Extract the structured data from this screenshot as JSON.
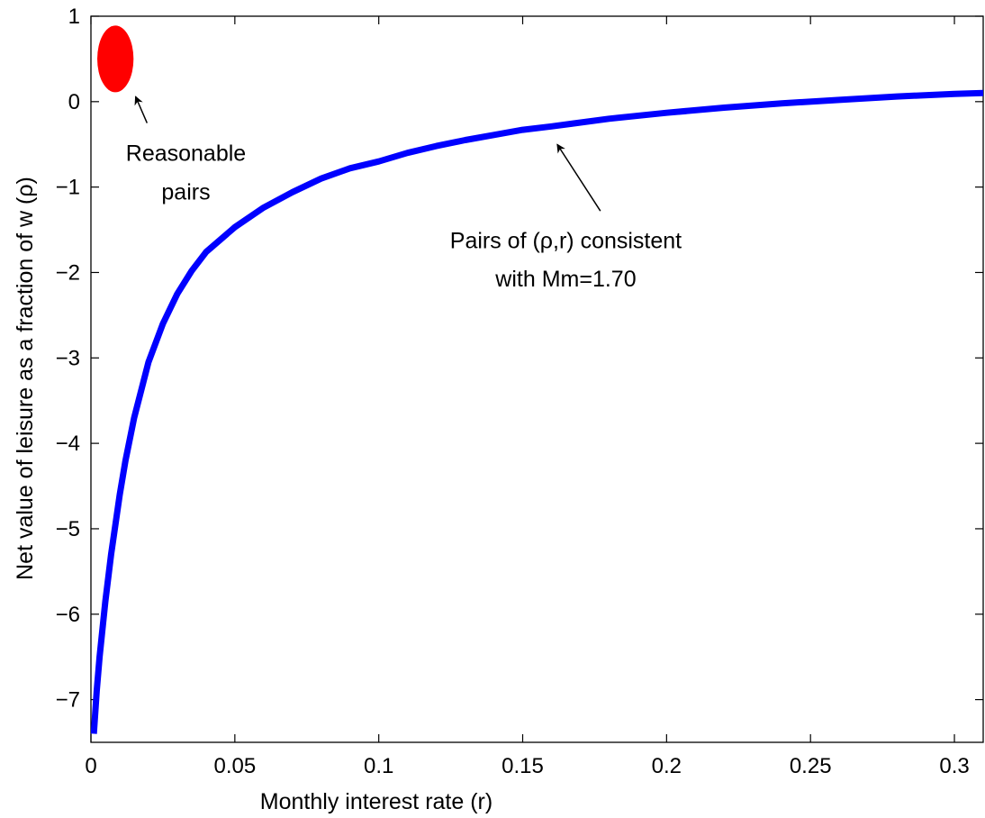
{
  "chart_data": {
    "type": "line",
    "title": "",
    "xlabel": "Monthly interest rate (r)",
    "ylabel": "Net value of leisure as a fraction of w   (ρ)",
    "xlim": [
      0,
      0.31
    ],
    "ylim": [
      -7.5,
      1
    ],
    "grid": false,
    "x_ticks": [
      0,
      0.05,
      0.1,
      0.15,
      0.2,
      0.25,
      0.3
    ],
    "x_tick_labels": [
      "0",
      "0.05",
      "0.1",
      "0.15",
      "0.2",
      "0.25",
      "0.3"
    ],
    "y_ticks": [
      1,
      0,
      -1,
      -2,
      -3,
      -4,
      -5,
      -6,
      -7
    ],
    "y_tick_labels": [
      "1",
      "0",
      "−1",
      "−2",
      "−3",
      "−4",
      "−5",
      "−6",
      "−7"
    ],
    "series": [
      {
        "color": "#0000ff",
        "x": [
          0.001,
          0.002,
          0.003,
          0.005,
          0.007,
          0.01,
          0.012,
          0.015,
          0.02,
          0.025,
          0.03,
          0.035,
          0.04,
          0.05,
          0.06,
          0.07,
          0.08,
          0.09,
          0.1,
          0.11,
          0.12,
          0.13,
          0.14,
          0.15,
          0.16,
          0.18,
          0.2,
          0.22,
          0.24,
          0.26,
          0.28,
          0.3,
          0.31
        ],
        "y": [
          -7.4,
          -6.9,
          -6.5,
          -5.85,
          -5.3,
          -4.6,
          -4.2,
          -3.7,
          -3.05,
          -2.6,
          -2.25,
          -1.98,
          -1.76,
          -1.47,
          -1.24,
          -1.06,
          -0.9,
          -0.78,
          -0.7,
          -0.6,
          -0.52,
          -0.45,
          -0.39,
          -0.33,
          -0.29,
          -0.2,
          -0.13,
          -0.07,
          -0.02,
          0.02,
          0.06,
          0.09,
          0.1
        ]
      }
    ],
    "highlight": {
      "shape": "ellipse",
      "color": "#ff0000",
      "x": 0.0085,
      "y": 0.5,
      "rx": 0.0063,
      "ry": 0.39
    },
    "annotations": [
      {
        "lines": [
          "Reasonable",
          "pairs"
        ],
        "text_x": 0.033,
        "text_y": [
          -0.6,
          -1.05
        ],
        "arrow_from": [
          0.0195,
          -0.25
        ],
        "arrow_to": [
          0.0155,
          0.06
        ]
      },
      {
        "lines": [
          "Pairs of (ρ,r) consistent",
          "with Mm=1.70"
        ],
        "text_x": 0.165,
        "text_y": [
          -1.62,
          -2.07
        ],
        "arrow_from": [
          0.177,
          -1.28
        ],
        "arrow_to": [
          0.162,
          -0.5
        ]
      }
    ]
  }
}
